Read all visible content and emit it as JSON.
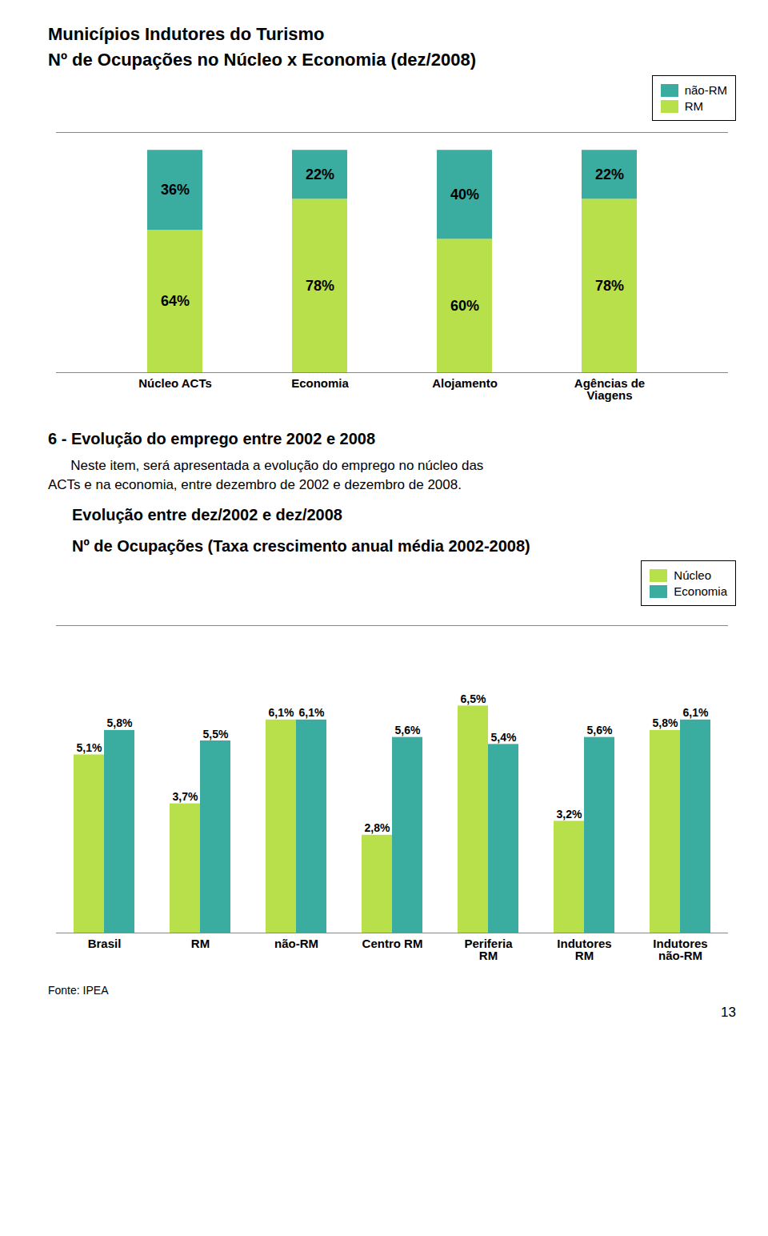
{
  "chart_data": [
    {
      "type": "bar",
      "title": "Municípios Indutores do Turismo",
      "subtitle": "Nº de Ocupações no Núcleo x Economia (dez/2008)",
      "categories": [
        "Núcleo ACTs",
        "Economia",
        "Alojamento",
        "Agências de\nViagens"
      ],
      "series": [
        {
          "name": "RM",
          "color": "#b8e04a",
          "values": [
            64,
            78,
            60,
            78
          ],
          "value_labels": [
            "64%",
            "78%",
            "60%",
            "78%"
          ]
        },
        {
          "name": "não-RM",
          "color": "#3aada0",
          "values": [
            36,
            22,
            40,
            22
          ],
          "value_labels": [
            "36%",
            "22%",
            "40%",
            "22%"
          ]
        }
      ],
      "stacked": true,
      "ylim": [
        0,
        108
      ],
      "tick_labels": "x",
      "grid": false,
      "legend": "upper right",
      "data_labels": true,
      "annotations": [
        "6 - Evolução do emprego entre 2002 e 2008",
        "      Neste item, será apresentada a evolução do emprego no núcleo das",
        "ACTs e na economia, entre dezembro de 2002 e dezembro de 2008."
      ]
    },
    {
      "type": "bar",
      "title": "Evolução entre dez/2002 e dez/2008",
      "subtitle": "Nº de Ocupações (Taxa crescimento anual média 2002-2008)",
      "categories": [
        "Brasil",
        "RM",
        "não-RM",
        "Centro RM",
        "Periferia\nRM",
        "Indutores\nRM",
        "Indutores\nnão-RM"
      ],
      "series": [
        {
          "name": "Núcleo",
          "color": "#b8e04a",
          "values": [
            5.1,
            3.7,
            6.1,
            2.8,
            6.5,
            3.2,
            5.8
          ],
          "value_labels": [
            "5,1%",
            "3,7%",
            "6,1%",
            "2,8%",
            "6,5%",
            "3,2%",
            "5,8%"
          ]
        },
        {
          "name": "Economia",
          "color": "#3aada0",
          "values": [
            5.8,
            5.5,
            6.1,
            5.6,
            5.4,
            5.6,
            6.1
          ],
          "value_labels": [
            "5,8%",
            "5,5%",
            "6,1%",
            "5,6%",
            "5,4%",
            "5,6%",
            "6,1%"
          ]
        }
      ],
      "stacked": false,
      "ylim": [
        0,
        8.8
      ],
      "tick_labels": "x",
      "grid": false,
      "legend": "upper right",
      "data_labels": true,
      "annotations": [
        "Fonte: IPEA",
        "13"
      ]
    }
  ]
}
